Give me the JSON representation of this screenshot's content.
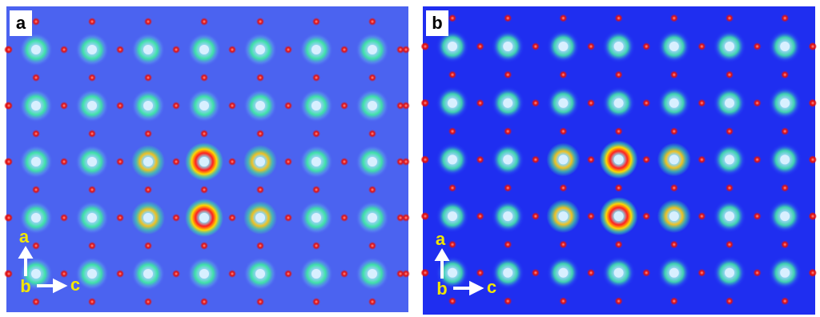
{
  "panels": [
    {
      "label": "a",
      "axes": {
        "up": "a",
        "origin": "b",
        "right": "c"
      }
    },
    {
      "label": "b",
      "axes": {
        "up": "a",
        "origin": "b",
        "right": "c"
      }
    }
  ]
}
